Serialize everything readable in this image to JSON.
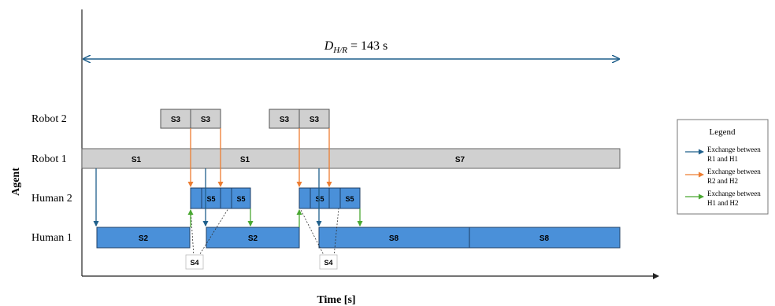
{
  "title": {
    "duration_var": "D",
    "duration_sub": "H/R",
    "duration_value": "= 143 s"
  },
  "axes": {
    "x_label": "Time [s]",
    "y_label": "Agent"
  },
  "rows": [
    {
      "id": "robot2",
      "label": "Robot 2"
    },
    {
      "id": "robot1",
      "label": "Robot 1"
    },
    {
      "id": "human2",
      "label": "Human 2"
    },
    {
      "id": "human1",
      "label": "Human 1"
    }
  ],
  "blocks": {
    "robot2": [
      "S3",
      "S3",
      "S3",
      "S3"
    ],
    "robot1": [
      "S1",
      "S1",
      "S7"
    ],
    "human2": [
      "S5",
      "S5",
      "S5",
      "S5"
    ],
    "human1": [
      "S2",
      "S2",
      "S8",
      "S8"
    ],
    "s4_labels": [
      "S4",
      "S4"
    ]
  },
  "legend": {
    "title": "Legend",
    "items": [
      {
        "line1": "Exchange between",
        "line2": "R1 and H1",
        "color": "#1f5f8b"
      },
      {
        "line1": "Exchange between",
        "line2": "R2 and H2",
        "color": "#ed7d31"
      },
      {
        "line1": "Exchange between",
        "line2": "H1 and H2",
        "color": "#4aa832"
      }
    ]
  },
  "colors": {
    "robot_fill": "#d0d0d0",
    "human_fill": "#4a90d9",
    "span_arrow": "#1f5f8b"
  }
}
